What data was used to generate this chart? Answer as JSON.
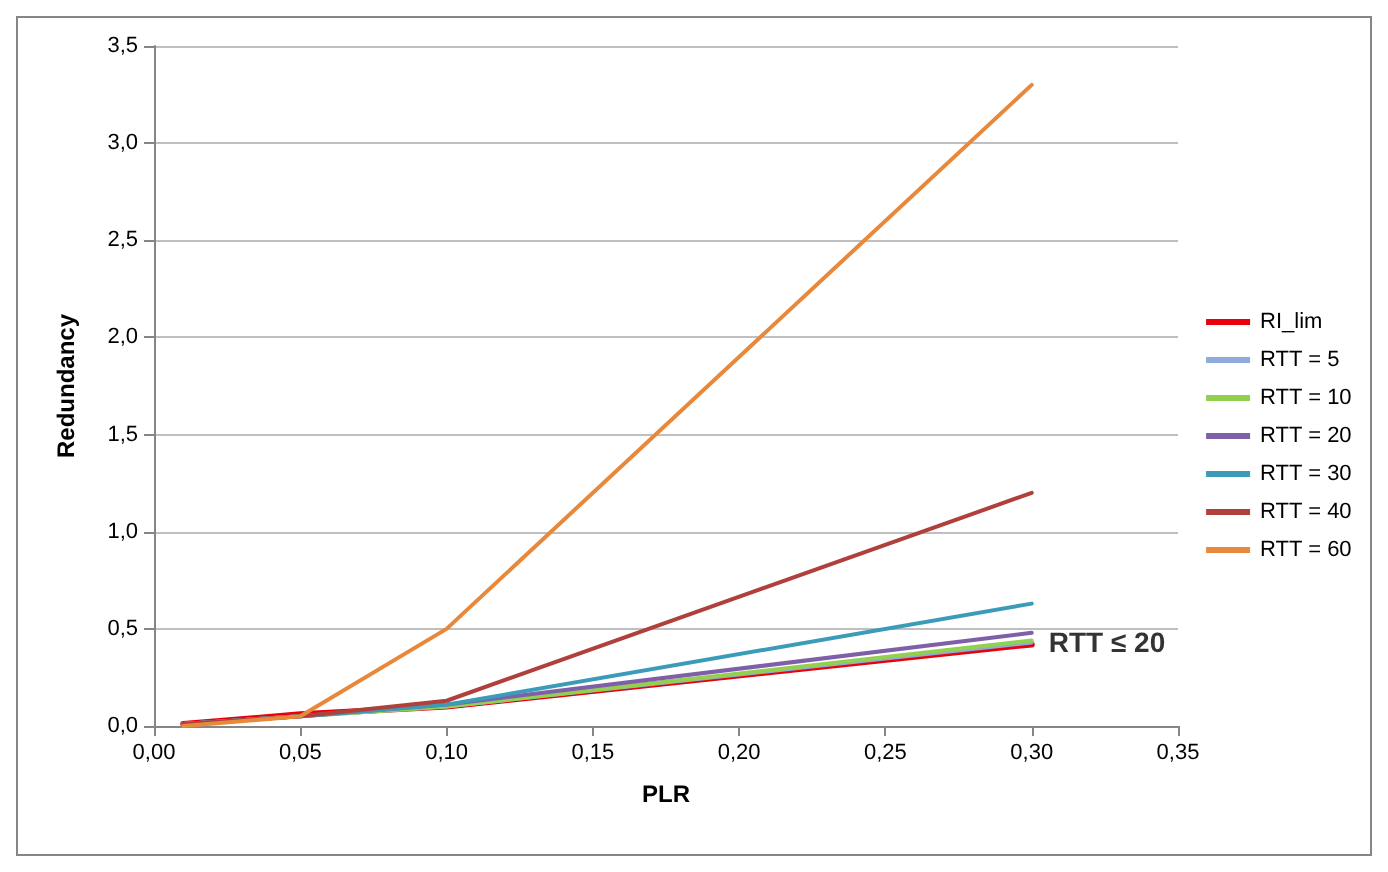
{
  "chart_data": {
    "type": "line",
    "xlabel": "PLR",
    "ylabel": "Redundancy",
    "x": [
      0.01,
      0.05,
      0.1,
      0.3
    ],
    "series": [
      {
        "name": "RI_lim",
        "color": "#e8000b",
        "values": [
          0.01,
          0.06,
          0.1,
          0.42
        ]
      },
      {
        "name": "RTT = 5",
        "color": "#8eaadb",
        "values": [
          0.01,
          0.05,
          0.1,
          0.43
        ]
      },
      {
        "name": "RTT = 10",
        "color": "#92d050",
        "values": [
          0.01,
          0.05,
          0.1,
          0.44
        ]
      },
      {
        "name": "RTT = 20",
        "color": "#7f5fa8",
        "values": [
          0.01,
          0.05,
          0.11,
          0.48
        ]
      },
      {
        "name": "RTT = 30",
        "color": "#3a9cb8",
        "values": [
          0.01,
          0.05,
          0.11,
          0.63
        ]
      },
      {
        "name": "RTT = 40",
        "color": "#b0403c",
        "values": [
          0.01,
          0.05,
          0.13,
          1.2
        ]
      },
      {
        "name": "RTT = 60",
        "color": "#e8883a",
        "values": [
          0,
          0.05,
          0.5,
          3.3
        ]
      }
    ],
    "xlim": [
      0,
      0.35
    ],
    "xticks": [
      {
        "value": 0,
        "label": "0,00"
      },
      {
        "value": 0.05,
        "label": "0,05"
      },
      {
        "value": 0.1,
        "label": "0,10"
      },
      {
        "value": 0.15,
        "label": "0,15"
      },
      {
        "value": 0.2,
        "label": "0,20"
      },
      {
        "value": 0.25,
        "label": "0,25"
      },
      {
        "value": 0.3,
        "label": "0,30"
      },
      {
        "value": 0.35,
        "label": "0,35"
      }
    ],
    "ylim": [
      0,
      3.5
    ],
    "yticks": [
      {
        "value": 0,
        "label": "0,0"
      },
      {
        "value": 0.5,
        "label": "0,5"
      },
      {
        "value": 1,
        "label": "1,0"
      },
      {
        "value": 1.5,
        "label": "1,5"
      },
      {
        "value": 2,
        "label": "2,0"
      },
      {
        "value": 2.5,
        "label": "2,5"
      },
      {
        "value": 3,
        "label": "3,0"
      },
      {
        "value": 3.5,
        "label": "3,5"
      }
    ],
    "annotations": [
      {
        "text": "RTT ≤ 20",
        "x": 0.3,
        "y": 0.43
      }
    ],
    "grid": "y",
    "legend": "right",
    "marker": "none",
    "line_style": "solid"
  }
}
